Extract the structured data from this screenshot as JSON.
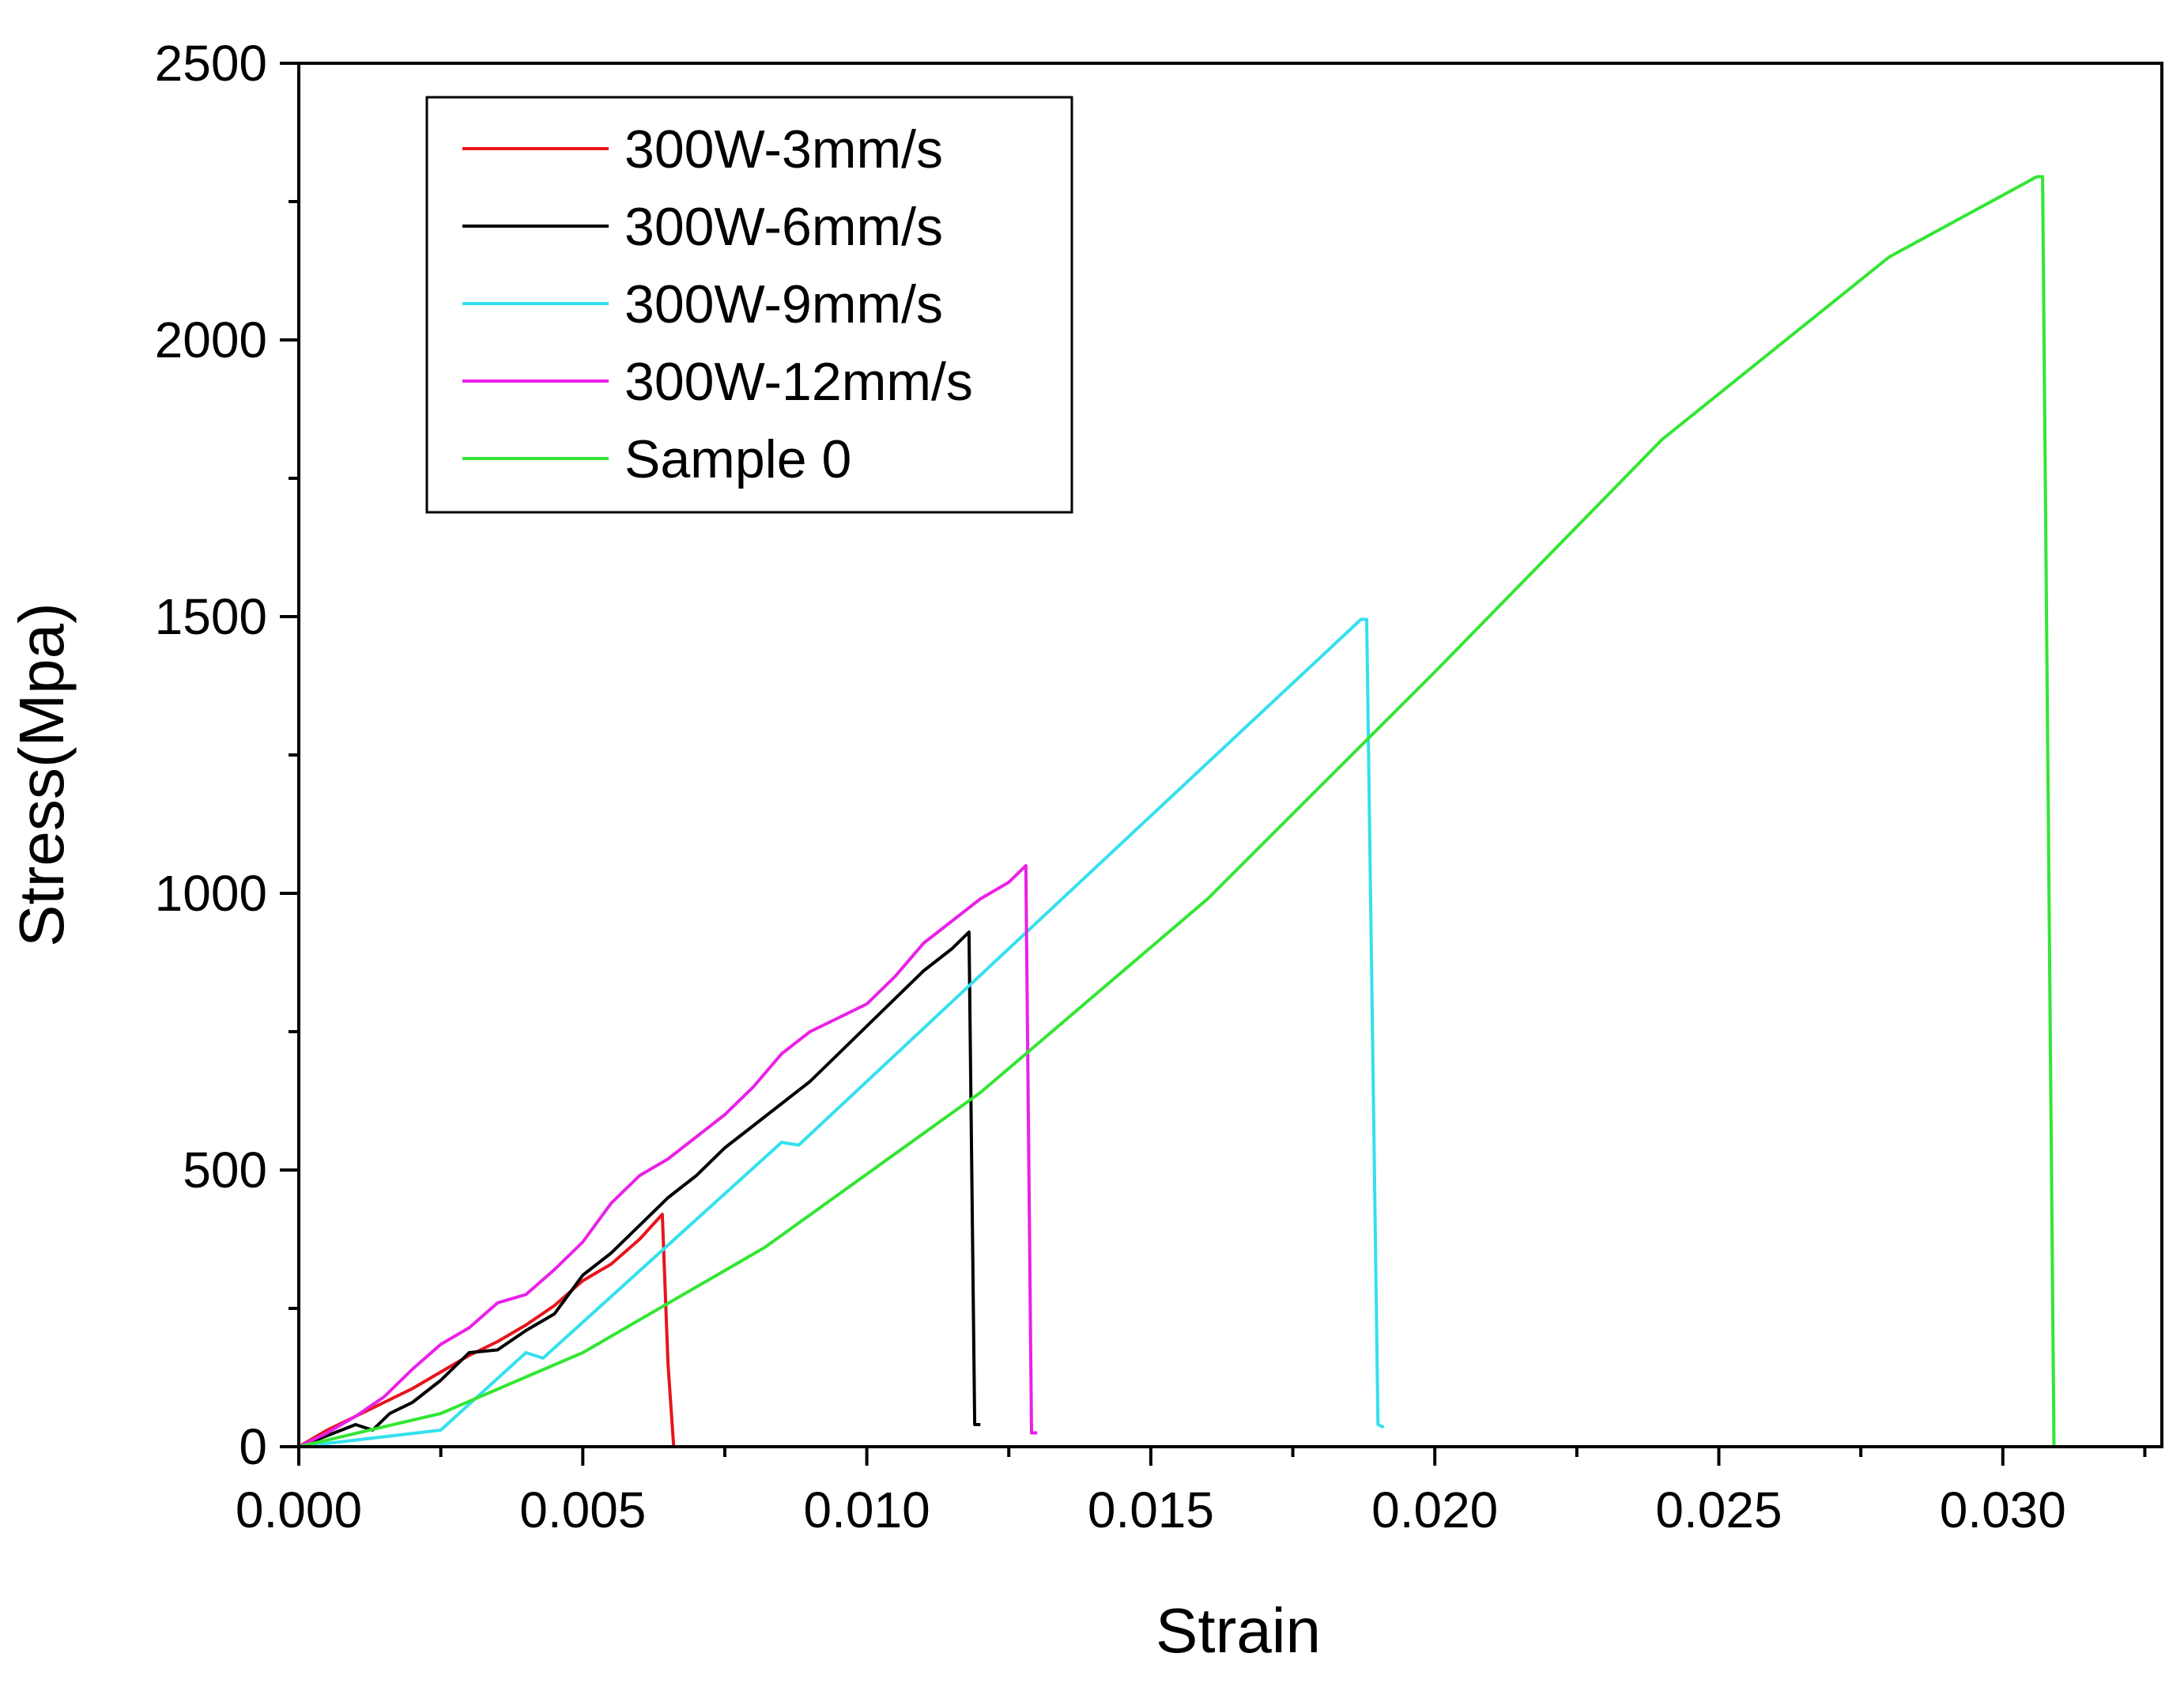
{
  "chart_data": {
    "type": "line",
    "title": "",
    "xlabel": "Strain",
    "ylabel": "Stress(Mpa)",
    "xlim": [
      0,
      0.0328
    ],
    "ylim": [
      0,
      2500
    ],
    "x_ticks": [
      0.0,
      0.005,
      0.01,
      0.015,
      0.02,
      0.025,
      0.03
    ],
    "x_tick_labels": [
      "0.000",
      "0.005",
      "0.010",
      "0.015",
      "0.020",
      "0.025",
      "0.030"
    ],
    "x_minor_ticks": [
      0.0025,
      0.0075,
      0.0125,
      0.0175,
      0.0225,
      0.0275,
      0.0325
    ],
    "y_ticks": [
      0,
      500,
      1000,
      1500,
      2000,
      2500
    ],
    "y_tick_labels": [
      "0",
      "500",
      "1000",
      "1500",
      "2000",
      "2500"
    ],
    "y_minor_ticks": [
      250,
      750,
      1250,
      1750,
      2250
    ],
    "grid": false,
    "legend_position": "top-left",
    "series": [
      {
        "name": "300W-3mm/s",
        "color": "#e8141c",
        "x": [
          0,
          0.0005,
          0.001,
          0.0015,
          0.002,
          0.0025,
          0.003,
          0.0035,
          0.004,
          0.0045,
          0.005,
          0.0055,
          0.006,
          0.0064,
          0.0065,
          0.0066
        ],
        "y": [
          0,
          30,
          55,
          80,
          105,
          135,
          165,
          190,
          220,
          255,
          300,
          330,
          375,
          420,
          150,
          0
        ]
      },
      {
        "name": "300W-6mm/s",
        "color": "#000000",
        "x": [
          0,
          0.0005,
          0.001,
          0.0013,
          0.0016,
          0.002,
          0.0025,
          0.003,
          0.0035,
          0.004,
          0.0045,
          0.005,
          0.0055,
          0.006,
          0.0065,
          0.007,
          0.0075,
          0.008,
          0.0085,
          0.009,
          0.0095,
          0.01,
          0.0105,
          0.011,
          0.0115,
          0.0118,
          0.0119,
          0.012
        ],
        "y": [
          0,
          20,
          40,
          30,
          60,
          80,
          120,
          170,
          175,
          210,
          240,
          310,
          350,
          400,
          450,
          490,
          540,
          580,
          620,
          660,
          710,
          760,
          810,
          860,
          900,
          930,
          40,
          40
        ]
      },
      {
        "name": "300W-9mm/s",
        "color": "#33e0ee",
        "x": [
          0,
          0.0025,
          0.004,
          0.0043,
          0.0085,
          0.0088,
          0.0187,
          0.0188,
          0.019,
          0.0191
        ],
        "y": [
          0,
          30,
          170,
          160,
          550,
          545,
          1495,
          1495,
          40,
          35
        ]
      },
      {
        "name": "300W-12mm/s",
        "color": "#ea20e8",
        "x": [
          0,
          0.0005,
          0.001,
          0.0015,
          0.002,
          0.0025,
          0.003,
          0.0035,
          0.004,
          0.0045,
          0.005,
          0.0055,
          0.006,
          0.0065,
          0.007,
          0.0075,
          0.008,
          0.0085,
          0.009,
          0.0095,
          0.01,
          0.0105,
          0.011,
          0.0115,
          0.012,
          0.0125,
          0.0128,
          0.0129,
          0.013
        ],
        "y": [
          0,
          25,
          55,
          90,
          140,
          185,
          215,
          260,
          275,
          320,
          370,
          440,
          490,
          520,
          560,
          600,
          650,
          710,
          750,
          775,
          800,
          850,
          910,
          950,
          990,
          1020,
          1050,
          25,
          25
        ]
      },
      {
        "name": "Sample 0",
        "color": "#33e633",
        "x": [
          0,
          0.0025,
          0.005,
          0.0082,
          0.012,
          0.016,
          0.02,
          0.024,
          0.028,
          0.0306,
          0.0307,
          0.0309
        ],
        "y": [
          0,
          60,
          170,
          360,
          640,
          990,
          1400,
          1820,
          2150,
          2295,
          2295,
          0
        ]
      }
    ]
  }
}
